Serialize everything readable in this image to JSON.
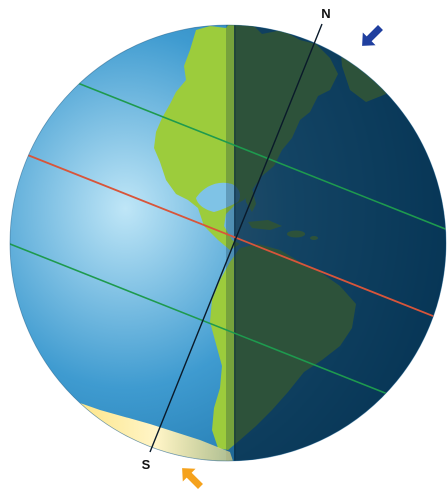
{
  "labels": {
    "north": "N",
    "south": "S"
  },
  "colors": {
    "ocean_light": "#bfe6f7",
    "ocean_mid": "#3f9bd0",
    "ocean_dark": "#0b5f96",
    "land": "#9ccc3c",
    "night_shade": "#03233a",
    "north_polar_cap": "#233f9a",
    "south_polar_glow": "#fde27a",
    "axis": "#0a1a2a",
    "tropic_lines": "#1e9a4e",
    "equator_line": "#d8553a",
    "north_arrow": "#1f3f9f",
    "south_arrow": "#f5a21d"
  },
  "icons": {
    "north_arrow": "arrow-down-left-icon",
    "south_arrow": "arrow-up-left-icon"
  }
}
